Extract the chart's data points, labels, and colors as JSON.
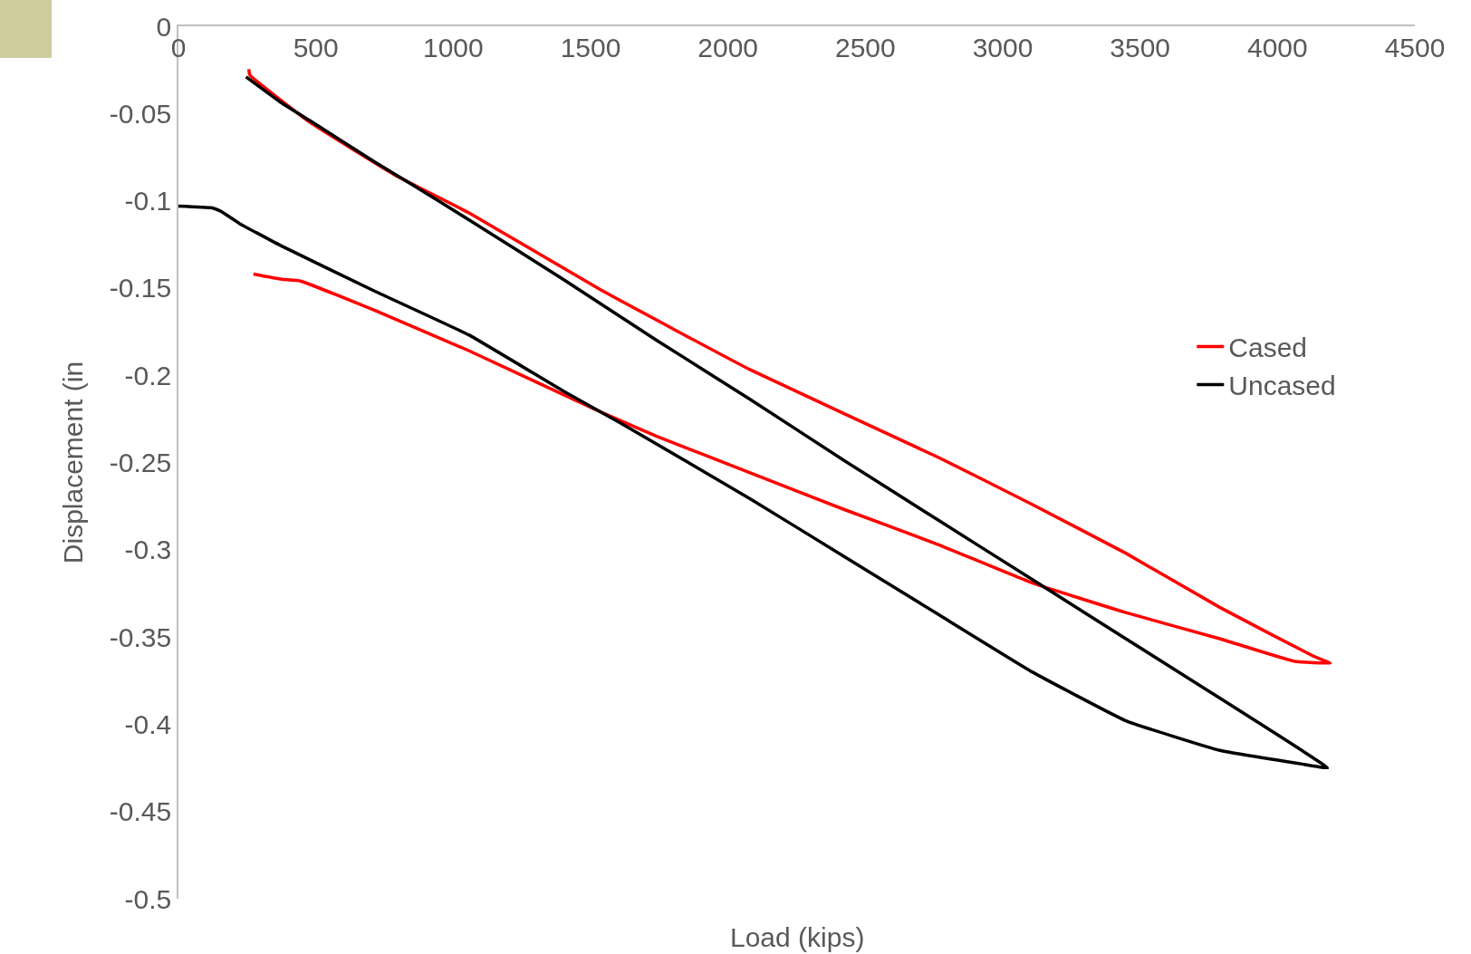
{
  "chart_data": {
    "type": "line",
    "xlabel": "Load (kips)",
    "ylabel": "Displacement (in",
    "xlim": [
      0,
      4500
    ],
    "xticks": [
      0,
      500,
      1000,
      1500,
      2000,
      2500,
      3000,
      3500,
      4000,
      4500
    ],
    "ylim": [
      -0.5,
      0
    ],
    "yticks": [
      0,
      -0.05,
      -0.1,
      -0.15,
      -0.2,
      -0.25,
      -0.3,
      -0.35,
      -0.4,
      -0.45,
      -0.5
    ],
    "grid": false,
    "legend": "right",
    "marker": "none",
    "line_style": "solid",
    "series": [
      {
        "name": "Cased",
        "color": "#ff0000",
        "x": [
          256,
          260,
          478,
          785,
          1058,
          1536,
          2083,
          2765,
          3107,
          3448,
          3790,
          4131,
          4192,
          4063,
          3790,
          3448,
          3107,
          2765,
          2424,
          2083,
          1741,
          1536,
          1058,
          717,
          444,
          376,
          273
        ],
        "values": [
          -0.0246,
          -0.028,
          -0.055,
          -0.085,
          -0.107,
          -0.151,
          -0.197,
          -0.247,
          -0.274,
          -0.302,
          -0.333,
          -0.361,
          -0.365,
          -0.364,
          -0.351,
          -0.336,
          -0.319,
          -0.297,
          -0.277,
          -0.256,
          -0.235,
          -0.221,
          -0.186,
          -0.163,
          -0.146,
          -0.145,
          -0.142
        ]
      },
      {
        "name": "Uncased",
        "color": "#000000",
        "x": [
          0,
          120,
          154,
          222,
          376,
          717,
          1058,
          1400,
          1605,
          2083,
          2424,
          2765,
          3107,
          3448,
          3790,
          4097,
          4182,
          3960,
          3619,
          3107,
          2765,
          2424,
          2083,
          1741,
          1400,
          1058,
          853,
          717,
          478,
          376,
          246
        ],
        "values": [
          -0.103,
          -0.104,
          -0.106,
          -0.113,
          -0.126,
          -0.152,
          -0.177,
          -0.209,
          -0.227,
          -0.271,
          -0.304,
          -0.337,
          -0.37,
          -0.398,
          -0.415,
          -0.423,
          -0.425,
          -0.402,
          -0.368,
          -0.317,
          -0.283,
          -0.249,
          -0.214,
          -0.18,
          -0.145,
          -0.111,
          -0.091,
          -0.078,
          -0.054,
          -0.044,
          -0.029
        ]
      }
    ]
  }
}
